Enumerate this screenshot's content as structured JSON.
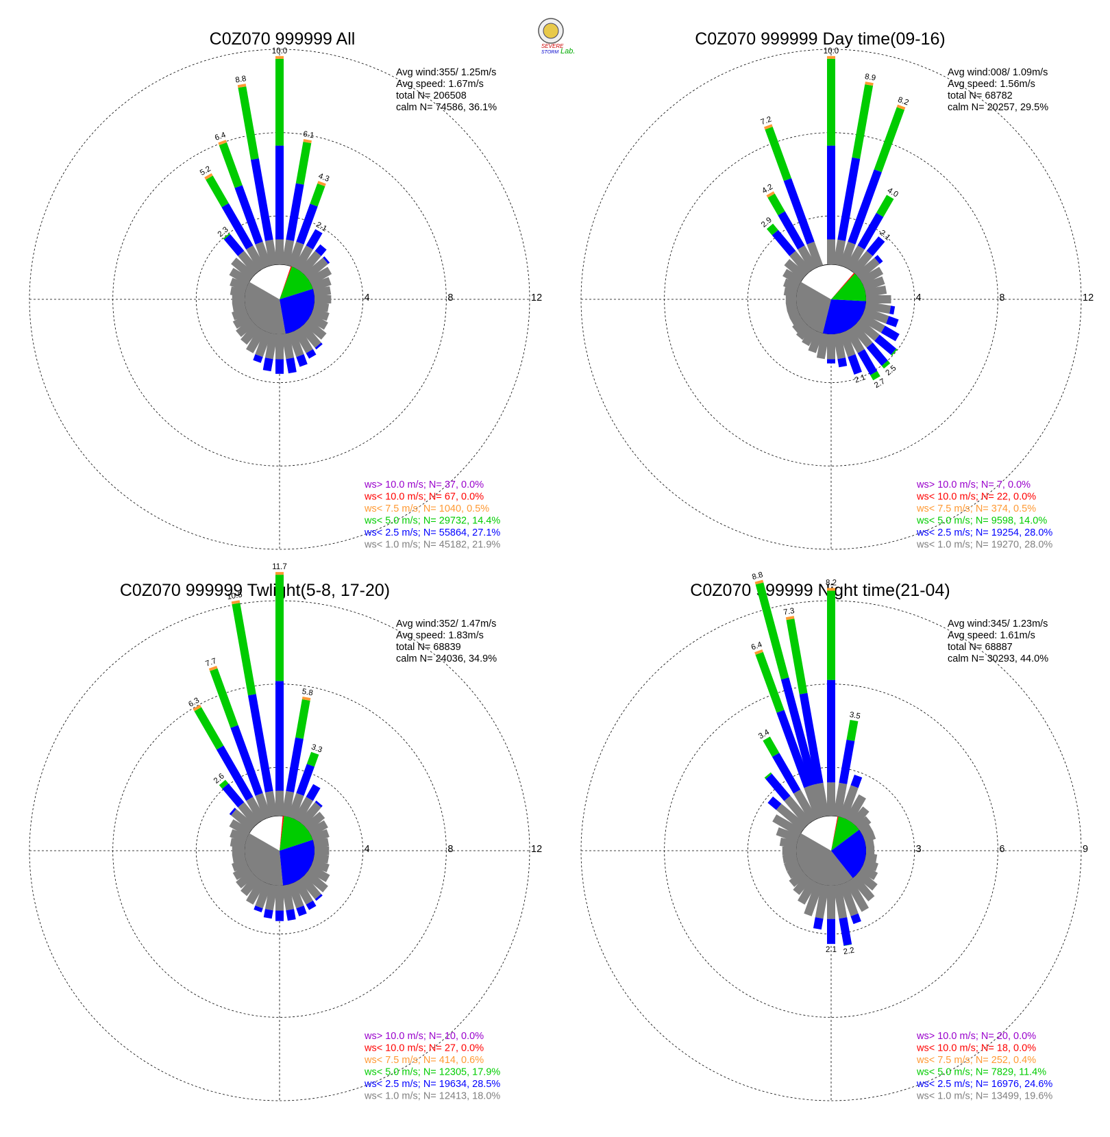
{
  "logo": {
    "lines": [
      "SEVERE",
      "STORM",
      "Lab."
    ]
  },
  "colors": {
    "gt10": "#9900cc",
    "lt10": "#ff0000",
    "lt7_5": "#ff9933",
    "lt5": "#00cc00",
    "lt2_5": "#0000ff",
    "lt1": "#808080"
  },
  "chart_data": [
    {
      "type": "wind-rose",
      "title": "C0Z070 999999 All",
      "info": [
        "Avg wind:355/ 1.25m/s",
        "Avg speed: 1.67m/s",
        "total N=      206508",
        "calm N=  74586,  36.1%"
      ],
      "rings": [
        4,
        8,
        12
      ],
      "ring_labels": [
        "4",
        "8",
        "12"
      ],
      "directions_deg": [
        0,
        10,
        20,
        30,
        40,
        50,
        60,
        70,
        80,
        90,
        100,
        110,
        120,
        130,
        140,
        150,
        160,
        170,
        180,
        190,
        200,
        210,
        220,
        230,
        240,
        250,
        260,
        270,
        280,
        290,
        300,
        310,
        320,
        330,
        340,
        350
      ],
      "bars_percent": [
        10.0,
        6.1,
        4.3,
        2.1,
        1.6,
        1.3,
        1.1,
        0.9,
        0.8,
        0.8,
        0.7,
        0.8,
        0.9,
        1.1,
        1.3,
        1.5,
        1.7,
        1.9,
        1.9,
        1.8,
        1.5,
        1.2,
        1.0,
        0.9,
        0.8,
        0.7,
        0.6,
        0.6,
        0.7,
        0.8,
        1.0,
        1.2,
        2.3,
        5.2,
        6.4,
        8.8
      ],
      "bar_labels": {
        "0": "10.0",
        "10": "6.1",
        "20": "4.3",
        "30": "2.1",
        "320": "2.3",
        "330": "5.2",
        "340": "6.4",
        "350": "8.8"
      },
      "calm_pie_percent": [
        36.1,
        27.1,
        14.4,
        0.5
      ],
      "legend": [
        {
          "class": "gt10",
          "text": "ws> 10.0 m/s; N=   37,  0.0%"
        },
        {
          "class": "lt10",
          "text": "ws< 10.0 m/s; N=   67,  0.0%"
        },
        {
          "class": "lt7_5",
          "text": "ws<  7.5 m/s; N=  1040,  0.5%"
        },
        {
          "class": "lt5",
          "text": "ws<  5.0 m/s; N= 29732, 14.4%"
        },
        {
          "class": "lt2_5",
          "text": "ws<  2.5 m/s; N= 55864, 27.1%"
        },
        {
          "class": "lt1",
          "text": "ws<  1.0 m/s; N= 45182, 21.9%"
        }
      ]
    },
    {
      "type": "wind-rose",
      "title": "C0Z070 999999 Day time(09-16)",
      "info": [
        "Avg wind:008/ 1.09m/s",
        "Avg speed: 1.56m/s",
        "total N=       68782",
        "calm N=  20257,  29.5%"
      ],
      "rings": [
        4,
        8,
        12
      ],
      "ring_labels": [
        "4",
        "8",
        "12"
      ],
      "directions_deg": [
        0,
        10,
        20,
        30,
        40,
        50,
        60,
        70,
        80,
        90,
        100,
        110,
        120,
        130,
        140,
        150,
        160,
        170,
        180,
        190,
        200,
        210,
        220,
        230,
        240,
        250,
        260,
        270,
        280,
        290,
        300,
        310,
        320,
        330,
        340,
        350
      ],
      "bars_percent": [
        10.0,
        8.9,
        8.2,
        4.0,
        2.1,
        1.4,
        1.1,
        1.0,
        1.0,
        1.2,
        1.4,
        1.7,
        2.0,
        2.3,
        2.5,
        2.7,
        2.1,
        1.6,
        1.4,
        1.2,
        1.0,
        0.8,
        0.7,
        0.6,
        0.5,
        0.5,
        0.5,
        0.5,
        0.6,
        0.7,
        0.9,
        1.1,
        2.9,
        4.2,
        7.2,
        0.0
      ],
      "bar_labels": {
        "0": "10.0",
        "10": "8.9",
        "20": "8.2",
        "30": "4.0",
        "40": "2.1",
        "140": "2.5",
        "150": "2.7",
        "160": "2.1",
        "320": "2.9",
        "330": "4.2",
        "340": "7.2"
      },
      "calm_pie_percent": [
        29.5,
        28.0,
        14.0,
        0.5
      ],
      "legend": [
        {
          "class": "gt10",
          "text": "ws> 10.0 m/s; N=    7,  0.0%"
        },
        {
          "class": "lt10",
          "text": "ws< 10.0 m/s; N=   22,  0.0%"
        },
        {
          "class": "lt7_5",
          "text": "ws<  7.5 m/s; N=   374,  0.5%"
        },
        {
          "class": "lt5",
          "text": "ws<  5.0 m/s; N=  9598, 14.0%"
        },
        {
          "class": "lt2_5",
          "text": "ws<  2.5 m/s; N= 19254, 28.0%"
        },
        {
          "class": "lt1",
          "text": "ws<  1.0 m/s; N= 19270, 28.0%"
        }
      ]
    },
    {
      "type": "wind-rose",
      "title": "C0Z070 999999 Twlight(5-8, 17-20)",
      "info": [
        "Avg wind:352/ 1.47m/s",
        "Avg speed: 1.83m/s",
        "total N=       68839",
        "calm N=  24036,  34.9%"
      ],
      "rings": [
        4,
        8,
        12
      ],
      "ring_labels": [
        "4",
        "8",
        "12"
      ],
      "directions_deg": [
        0,
        10,
        20,
        30,
        40,
        50,
        60,
        70,
        80,
        90,
        100,
        110,
        120,
        130,
        140,
        150,
        160,
        170,
        180,
        190,
        200,
        210,
        220,
        230,
        240,
        250,
        260,
        270,
        280,
        290,
        300,
        310,
        320,
        330,
        340,
        350
      ],
      "bars_percent": [
        11.7,
        5.8,
        3.3,
        1.9,
        1.3,
        1.0,
        0.9,
        0.8,
        0.7,
        0.7,
        0.7,
        0.8,
        1.0,
        1.2,
        1.3,
        1.5,
        1.6,
        1.7,
        1.7,
        1.6,
        1.4,
        1.2,
        1.0,
        0.9,
        0.8,
        0.7,
        0.6,
        0.6,
        0.7,
        0.8,
        1.0,
        1.3,
        2.6,
        6.3,
        7.7,
        10.5
      ],
      "bar_labels": {
        "0": "11.7",
        "10": "5.8",
        "20": "3.3",
        "320": "2.6",
        "330": "6.3",
        "340": "7.7",
        "350": "10.5"
      },
      "calm_pie_percent": [
        34.9,
        28.5,
        17.9,
        0.6
      ],
      "legend": [
        {
          "class": "gt10",
          "text": "ws> 10.0 m/s; N=   10,  0.0%"
        },
        {
          "class": "lt10",
          "text": "ws< 10.0 m/s; N=   27,  0.0%"
        },
        {
          "class": "lt7_5",
          "text": "ws<  7.5 m/s; N=   414,  0.6%"
        },
        {
          "class": "lt5",
          "text": "ws<  5.0 m/s; N= 12305, 17.9%"
        },
        {
          "class": "lt2_5",
          "text": "ws<  2.5 m/s; N= 19634, 28.5%"
        },
        {
          "class": "lt1",
          "text": "ws<  1.0 m/s; N= 12413, 18.0%"
        }
      ]
    },
    {
      "type": "wind-rose",
      "title": "C0Z070 999999 Night time(21-04)",
      "info": [
        "Avg wind:345/ 1.23m/s",
        "Avg speed: 1.61m/s",
        "total N=       68887",
        "calm N=  30293,  44.0%"
      ],
      "rings": [
        3,
        6,
        9
      ],
      "ring_labels": [
        "3",
        "6",
        "9"
      ],
      "directions_deg": [
        0,
        10,
        20,
        30,
        40,
        50,
        60,
        70,
        80,
        90,
        100,
        110,
        120,
        130,
        140,
        150,
        160,
        170,
        180,
        190,
        200,
        210,
        220,
        230,
        240,
        250,
        260,
        270,
        280,
        290,
        300,
        310,
        320,
        330,
        340,
        350
      ],
      "bars_percent": [
        8.2,
        3.5,
        1.6,
        1.0,
        0.7,
        0.5,
        0.4,
        0.4,
        0.3,
        0.3,
        0.4,
        0.5,
        0.6,
        0.8,
        1.0,
        1.2,
        1.5,
        2.2,
        2.1,
        1.6,
        1.2,
        0.9,
        0.7,
        0.6,
        0.5,
        0.5,
        0.5,
        0.5,
        0.6,
        0.8,
        1.1,
        1.6,
        2.3,
        3.4,
        6.4,
        7.3
      ],
      "bar_labels": {
        "0": "8.2",
        "10": "3.5",
        "170": "2.2",
        "180": "2.1",
        "330": "3.4",
        "340": "6.4",
        "350": "7.3"
      },
      "extra_bar": {
        "dir": 345,
        "value": 8.8,
        "label": "8.8"
      },
      "calm_pie_percent": [
        44.0,
        24.6,
        11.4,
        0.4
      ],
      "legend": [
        {
          "class": "gt10",
          "text": "ws> 10.0 m/s; N=   20,  0.0%"
        },
        {
          "class": "lt10",
          "text": "ws< 10.0 m/s; N=   18,  0.0%"
        },
        {
          "class": "lt7_5",
          "text": "ws<  7.5 m/s; N=   252,  0.4%"
        },
        {
          "class": "lt5",
          "text": "ws<  5.0 m/s; N=  7829, 11.4%"
        },
        {
          "class": "lt2_5",
          "text": "ws<  2.5 m/s; N= 16976, 24.6%"
        },
        {
          "class": "lt1",
          "text": "ws<  1.0 m/s; N= 13499, 19.6%"
        }
      ]
    }
  ]
}
